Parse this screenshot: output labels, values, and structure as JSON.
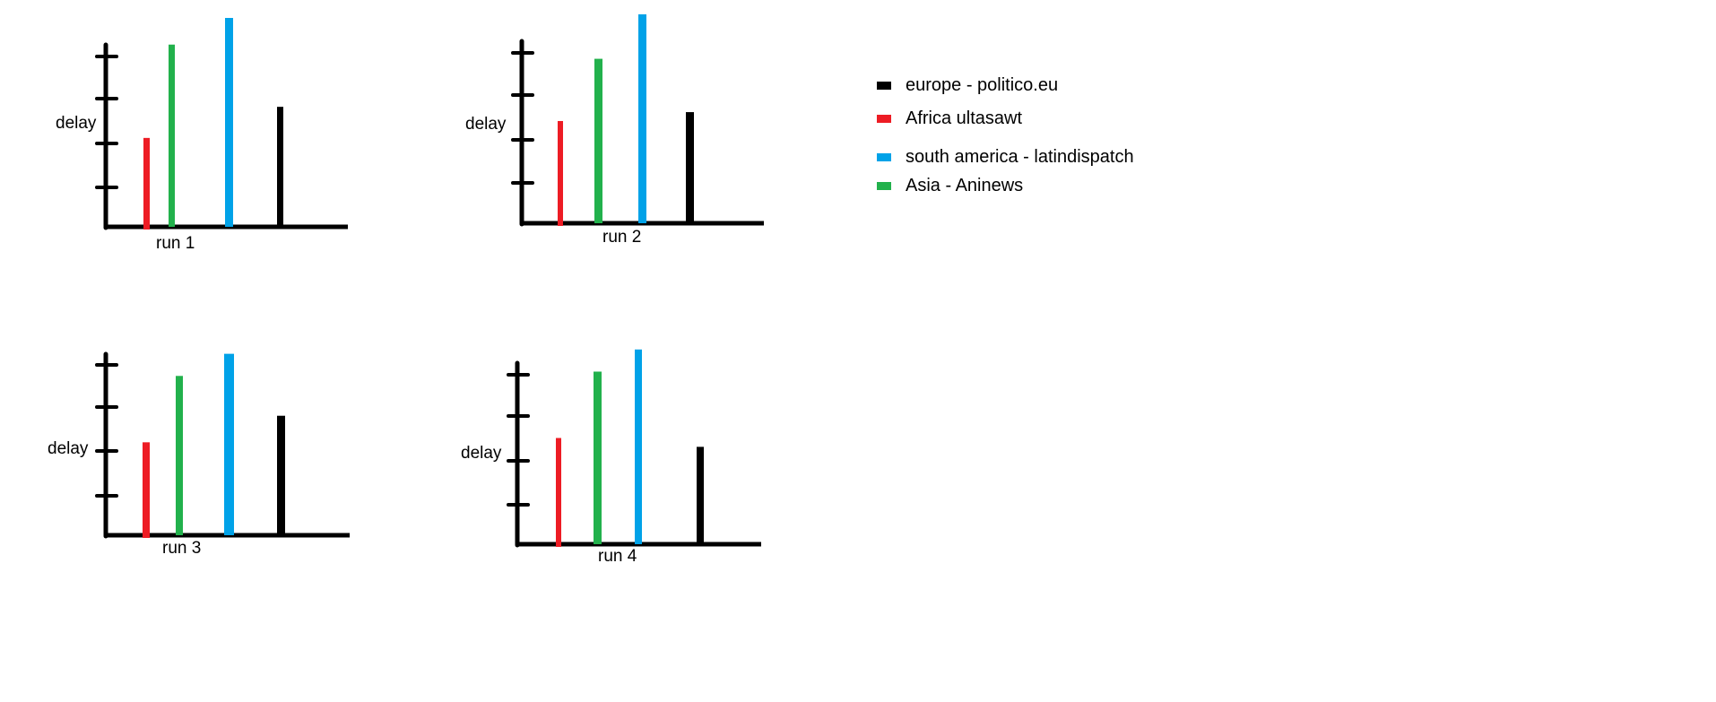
{
  "colors": {
    "axis": "#000000",
    "africa": "#ed1c24",
    "asia": "#22b14c",
    "south_america": "#00a2e8",
    "europe": "#000000"
  },
  "legend": [
    {
      "label": "europe - politico.eu",
      "color": "#000000"
    },
    {
      "label": "Africa ultasawt",
      "color": "#ed1c24"
    },
    {
      "label": "south america - latindispatch",
      "color": "#00a2e8"
    },
    {
      "label": "Asia - Aninews",
      "color": "#22b14c"
    }
  ],
  "chart_data": [
    {
      "type": "bar",
      "title": "",
      "xlabel": "run 1",
      "ylabel": "delay",
      "ylim": [
        0,
        4
      ],
      "series": [
        {
          "name": "Africa ultasawt",
          "value": 2.0
        },
        {
          "name": "Asia - Aninews",
          "value": 4.1
        },
        {
          "name": "south america - latindispatch",
          "value": 4.7
        },
        {
          "name": "europe - politico.eu",
          "value": 2.7
        }
      ]
    },
    {
      "type": "bar",
      "title": "",
      "xlabel": "run 2",
      "ylabel": "delay",
      "ylim": [
        0,
        4
      ],
      "series": [
        {
          "name": "Africa ultasawt",
          "value": 2.3
        },
        {
          "name": "Asia - Aninews",
          "value": 3.7
        },
        {
          "name": "south america - latindispatch",
          "value": 4.7
        },
        {
          "name": "europe - politico.eu",
          "value": 2.5
        }
      ]
    },
    {
      "type": "bar",
      "title": "",
      "xlabel": "run 3",
      "ylabel": "delay",
      "ylim": [
        0,
        4
      ],
      "series": [
        {
          "name": "Africa ultasawt",
          "value": 2.1
        },
        {
          "name": "Asia - Aninews",
          "value": 3.6
        },
        {
          "name": "south america - latindispatch",
          "value": 4.1
        },
        {
          "name": "europe - politico.eu",
          "value": 2.7
        }
      ]
    },
    {
      "type": "bar",
      "title": "",
      "xlabel": "run 4",
      "ylabel": "delay",
      "ylim": [
        0,
        4
      ],
      "series": [
        {
          "name": "Africa ultasawt",
          "value": 2.4
        },
        {
          "name": "Asia - Aninews",
          "value": 3.9
        },
        {
          "name": "south america - latindispatch",
          "value": 4.4
        },
        {
          "name": "europe - politico.eu",
          "value": 2.2
        }
      ]
    }
  ]
}
